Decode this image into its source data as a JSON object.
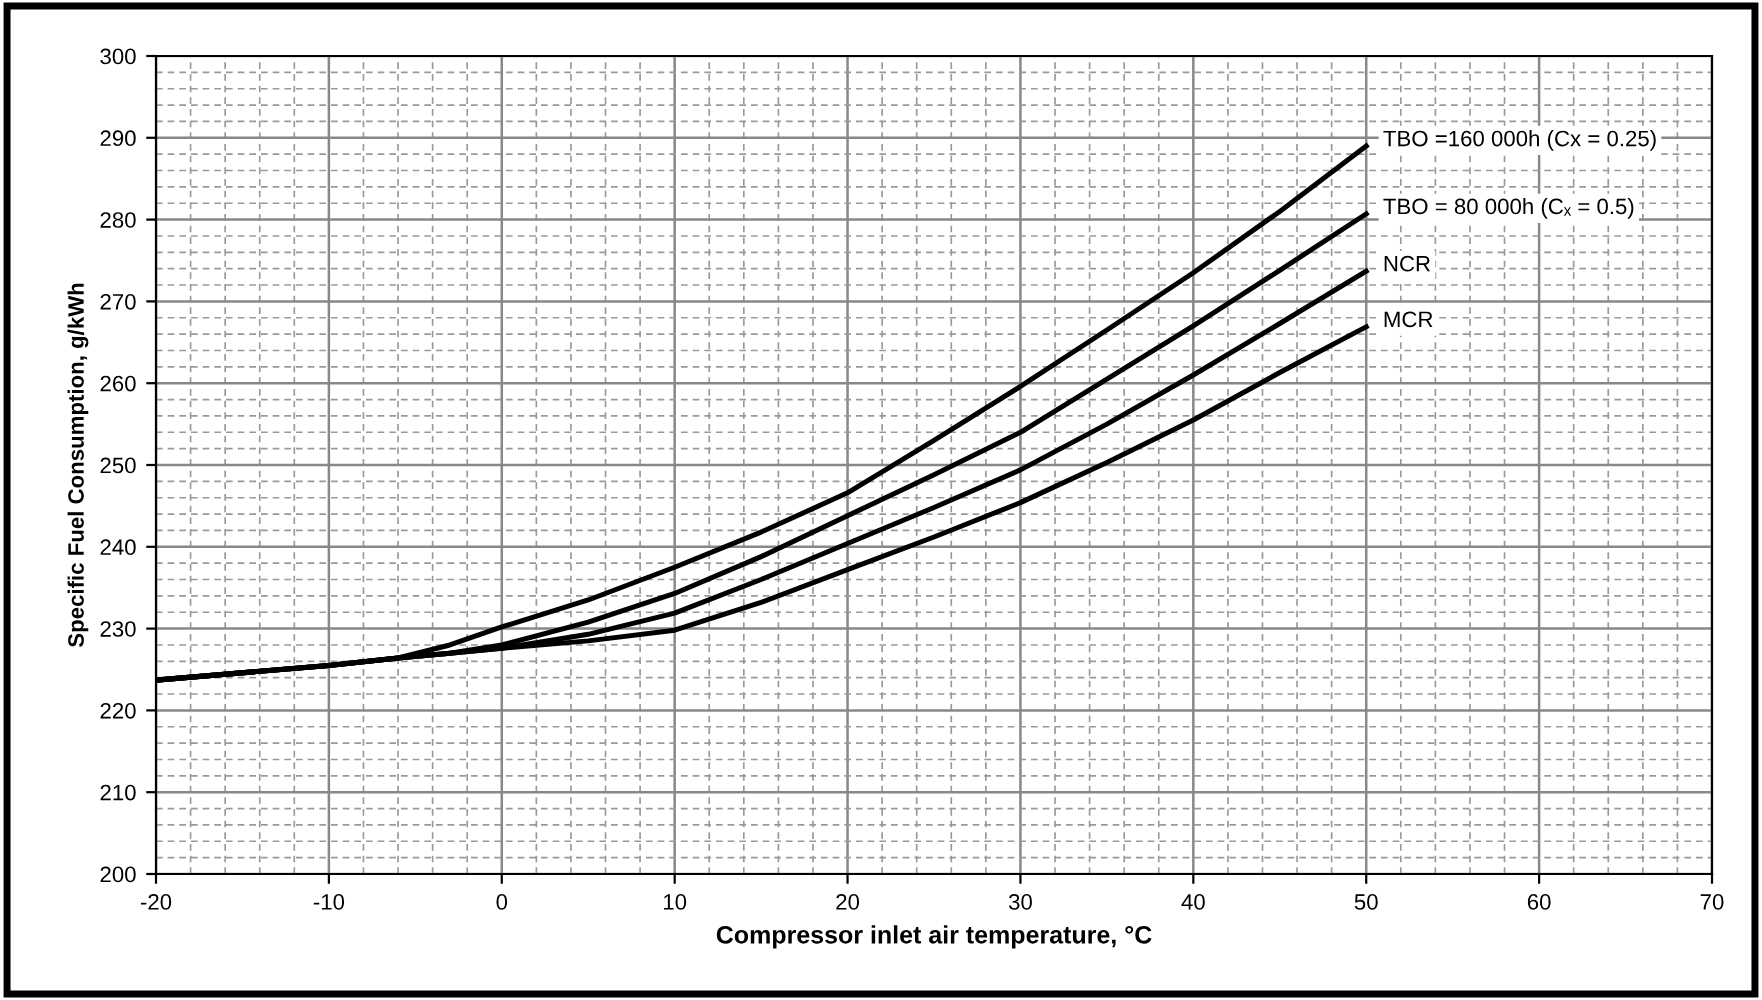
{
  "chart_data": {
    "type": "line",
    "xlabel": "Compressor inlet air temperature, °C",
    "ylabel": "Specific Fuel Consumption, g/kWh",
    "x": [
      -20,
      -10,
      -6,
      -3,
      0,
      5,
      10,
      15,
      20,
      25,
      30,
      35,
      40,
      45,
      50
    ],
    "series": [
      {
        "name": "TBO =160 000h (Cx = 0.25)",
        "color": "#000000",
        "values": [
          223.7,
          225.5,
          226.4,
          228.0,
          230.2,
          233.5,
          237.5,
          241.8,
          246.6,
          253.0,
          259.6,
          266.5,
          273.5,
          281.0,
          289.0
        ]
      },
      {
        "name": "TBO = 80 000h (Cₓ = 0.5)",
        "color": "#000000",
        "values": [
          223.7,
          225.5,
          226.4,
          227.0,
          228.0,
          230.8,
          234.3,
          238.8,
          243.8,
          248.8,
          254.0,
          260.5,
          267.0,
          273.8,
          280.7
        ]
      },
      {
        "name": "NCR",
        "color": "#000000",
        "values": [
          223.7,
          225.5,
          226.4,
          227.0,
          227.6,
          229.3,
          231.9,
          236.0,
          240.4,
          244.8,
          249.4,
          255.0,
          261.0,
          267.3,
          273.7
        ]
      },
      {
        "name": "MCR",
        "color": "#000000",
        "values": [
          223.7,
          225.5,
          226.4,
          227.0,
          227.6,
          228.5,
          229.8,
          233.2,
          237.2,
          241.2,
          245.4,
          250.3,
          255.5,
          261.3,
          266.9
        ]
      }
    ],
    "xlim": [
      -20,
      70
    ],
    "xticks": [
      -20,
      -10,
      0,
      10,
      20,
      30,
      40,
      50,
      60,
      70
    ],
    "ylim": [
      200,
      300
    ],
    "yticks": [
      200,
      210,
      220,
      230,
      240,
      250,
      260,
      270,
      280,
      290,
      300
    ],
    "grid": true,
    "legend": false,
    "marker": "none",
    "line_style": "solid"
  }
}
